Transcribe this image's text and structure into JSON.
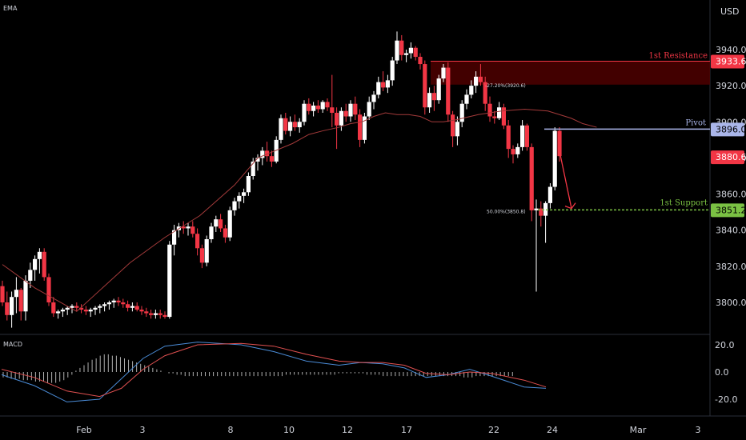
{
  "header": {
    "indicator": "EMA",
    "currency": "USD"
  },
  "macd_panel": {
    "label": "MACD",
    "ticks": [
      "20.0",
      "0.0",
      "-20.0"
    ]
  },
  "colors": {
    "up": "#ffffff",
    "down": "#f23645",
    "ema": "#a33a3a",
    "resistance": "#f23645",
    "pivot": "#aab6ea",
    "support": "#7ac143",
    "zone": "#4d0000",
    "macd": "#4a8bd6",
    "signal": "#e05050",
    "hist": "#b0b0b0"
  },
  "chart_data": [
    {
      "type": "candlestick",
      "title": "",
      "y_ticks": [
        3940.0,
        3920.0,
        3900.0,
        3880.0,
        3860.0,
        3840.0,
        3820.0,
        3800.0
      ],
      "y_tick_labels": [
        "3940.0",
        "3920.0",
        "3900.0",
        "3880.0",
        "3860.0",
        "3840.0",
        "3820.0",
        "3800.0"
      ],
      "x_tick_labels": [
        "Feb",
        "3",
        "8",
        "10",
        "12",
        "17",
        "22",
        "24",
        "Mar",
        "3"
      ],
      "ylim": [
        3785,
        3958
      ],
      "levels": [
        {
          "name": "1st Resistance",
          "value": 3933.6,
          "label": "3933.6"
        },
        {
          "name": "Pivot",
          "value": 3896.0,
          "label": "3896.0"
        },
        {
          "name": "1st Support",
          "value": 3851.2,
          "label": "3851.2"
        }
      ],
      "fib_labels": [
        {
          "text": "-27.20%(3920.6)",
          "value": 3920.6
        },
        {
          "text": "50.00%(3850.8)",
          "value": 3850.8
        }
      ],
      "resistance_zone": [
        3920.6,
        3933.6
      ],
      "current_price": {
        "value": 3880.6,
        "label": "3880.6"
      },
      "candles": [
        [
          3809,
          3812,
          3798,
          3800
        ],
        [
          3800,
          3806,
          3790,
          3793
        ],
        [
          3793,
          3806,
          3786,
          3803
        ],
        [
          3803,
          3814,
          3794,
          3807
        ],
        [
          3807,
          3808,
          3790,
          3795
        ],
        [
          3795,
          3815,
          3790,
          3812
        ],
        [
          3812,
          3822,
          3808,
          3818
        ],
        [
          3818,
          3826,
          3812,
          3824
        ],
        [
          3824,
          3830,
          3816,
          3828
        ],
        [
          3828,
          3830,
          3812,
          3814
        ],
        [
          3814,
          3816,
          3798,
          3800
        ],
        [
          3800,
          3803,
          3792,
          3794
        ],
        [
          3794,
          3796,
          3791,
          3795
        ],
        [
          3795,
          3797,
          3792,
          3796
        ],
        [
          3796,
          3798,
          3793,
          3797
        ],
        [
          3797,
          3799,
          3794,
          3798
        ],
        [
          3798,
          3800,
          3795,
          3797
        ],
        [
          3797,
          3799,
          3794,
          3796
        ],
        [
          3796,
          3798,
          3793,
          3795
        ],
        [
          3795,
          3797,
          3792,
          3796
        ],
        [
          3796,
          3798,
          3793,
          3797
        ],
        [
          3797,
          3799,
          3794,
          3798
        ],
        [
          3798,
          3800,
          3795,
          3799
        ],
        [
          3799,
          3801,
          3796,
          3800
        ],
        [
          3800,
          3802,
          3797,
          3801
        ],
        [
          3801,
          3803,
          3798,
          3800
        ],
        [
          3800,
          3802,
          3797,
          3799
        ],
        [
          3799,
          3801,
          3795,
          3797
        ],
        [
          3797,
          3800,
          3795,
          3798
        ],
        [
          3798,
          3800,
          3795,
          3796
        ],
        [
          3796,
          3798,
          3793,
          3795
        ],
        [
          3795,
          3797,
          3792,
          3794
        ],
        [
          3794,
          3796,
          3791,
          3793
        ],
        [
          3793,
          3796,
          3791,
          3794
        ],
        [
          3794,
          3796,
          3791,
          3793
        ],
        [
          3793,
          3795,
          3791,
          3792
        ],
        [
          3792,
          3834,
          3791,
          3832
        ],
        [
          3832,
          3843,
          3826,
          3840
        ],
        [
          3840,
          3844,
          3836,
          3842
        ],
        [
          3842,
          3845,
          3838,
          3841
        ],
        [
          3841,
          3844,
          3837,
          3842
        ],
        [
          3842,
          3845,
          3836,
          3838
        ],
        [
          3838,
          3841,
          3826,
          3830
        ],
        [
          3830,
          3832,
          3819,
          3822
        ],
        [
          3822,
          3837,
          3820,
          3835
        ],
        [
          3835,
          3844,
          3833,
          3842
        ],
        [
          3842,
          3848,
          3839,
          3846
        ],
        [
          3846,
          3849,
          3839,
          3841
        ],
        [
          3841,
          3843,
          3833,
          3836
        ],
        [
          3836,
          3853,
          3834,
          3851
        ],
        [
          3851,
          3858,
          3848,
          3856
        ],
        [
          3856,
          3861,
          3852,
          3859
        ],
        [
          3859,
          3863,
          3855,
          3861
        ],
        [
          3861,
          3872,
          3859,
          3870
        ],
        [
          3870,
          3880,
          3868,
          3878
        ],
        [
          3878,
          3882,
          3873,
          3880
        ],
        [
          3880,
          3886,
          3876,
          3884
        ],
        [
          3884,
          3889,
          3878,
          3881
        ],
        [
          3881,
          3884,
          3875,
          3878
        ],
        [
          3878,
          3892,
          3877,
          3890
        ],
        [
          3890,
          3904,
          3888,
          3902
        ],
        [
          3902,
          3905,
          3893,
          3895
        ],
        [
          3895,
          3903,
          3892,
          3900
        ],
        [
          3900,
          3904,
          3895,
          3897
        ],
        [
          3897,
          3902,
          3894,
          3900
        ],
        [
          3900,
          3912,
          3898,
          3910
        ],
        [
          3910,
          3913,
          3904,
          3906
        ],
        [
          3906,
          3911,
          3903,
          3909
        ],
        [
          3909,
          3912,
          3905,
          3907
        ],
        [
          3907,
          3912,
          3905,
          3911
        ],
        [
          3911,
          3913,
          3906,
          3908
        ],
        [
          3908,
          3926,
          3897,
          3905
        ],
        [
          3905,
          3908,
          3885,
          3898
        ],
        [
          3898,
          3908,
          3895,
          3906
        ],
        [
          3906,
          3910,
          3900,
          3903
        ],
        [
          3903,
          3912,
          3900,
          3910
        ],
        [
          3910,
          3914,
          3901,
          3904
        ],
        [
          3904,
          3907,
          3886,
          3890
        ],
        [
          3890,
          3905,
          3888,
          3903
        ],
        [
          3903,
          3914,
          3901,
          3911
        ],
        [
          3911,
          3917,
          3907,
          3915
        ],
        [
          3915,
          3925,
          3913,
          3922
        ],
        [
          3922,
          3928,
          3917,
          3919
        ],
        [
          3919,
          3926,
          3916,
          3923
        ],
        [
          3923,
          3936,
          3920,
          3934
        ],
        [
          3934,
          3950,
          3932,
          3945
        ],
        [
          3945,
          3948,
          3934,
          3937
        ],
        [
          3937,
          3940,
          3933,
          3938
        ],
        [
          3938,
          3944,
          3935,
          3941
        ],
        [
          3941,
          3942,
          3934,
          3936
        ],
        [
          3936,
          3938,
          3929,
          3932
        ],
        [
          3932,
          3934,
          3904,
          3908
        ],
        [
          3908,
          3919,
          3905,
          3916
        ],
        [
          3916,
          3920,
          3906,
          3912
        ],
        [
          3912,
          3926,
          3910,
          3924
        ],
        [
          3924,
          3932,
          3922,
          3930
        ],
        [
          3930,
          3933,
          3900,
          3904
        ],
        [
          3904,
          3906,
          3886,
          3892
        ],
        [
          3892,
          3903,
          3887,
          3900
        ],
        [
          3900,
          3912,
          3897,
          3910
        ],
        [
          3910,
          3918,
          3907,
          3915
        ],
        [
          3915,
          3923,
          3913,
          3920
        ],
        [
          3920,
          3928,
          3916,
          3925
        ],
        [
          3925,
          3932,
          3920,
          3922
        ],
        [
          3922,
          3925,
          3906,
          3910
        ],
        [
          3910,
          3914,
          3900,
          3903
        ],
        [
          3903,
          3906,
          3899,
          3902
        ],
        [
          3902,
          3911,
          3901,
          3908
        ],
        [
          3908,
          3910,
          3896,
          3898
        ],
        [
          3898,
          3901,
          3880,
          3885
        ],
        [
          3885,
          3887,
          3877,
          3882
        ],
        [
          3882,
          3888,
          3880,
          3886
        ],
        [
          3886,
          3901,
          3884,
          3898
        ],
        [
          3898,
          3899,
          3884,
          3886
        ],
        [
          3886,
          3888,
          3845,
          3851
        ],
        [
          3851,
          3857,
          3806,
          3852
        ],
        [
          3852,
          3856,
          3842,
          3848
        ],
        [
          3848,
          3856,
          3833,
          3855
        ],
        [
          3855,
          3866,
          3852,
          3864
        ],
        [
          3864,
          3897,
          3862,
          3895
        ],
        [
          3895,
          3897,
          3878,
          3881
        ]
      ],
      "ema": [
        [
          0,
          3821
        ],
        [
          14,
          3808
        ],
        [
          32,
          3795
        ],
        [
          55,
          3822
        ],
        [
          70,
          3836
        ],
        [
          85,
          3848
        ],
        [
          100,
          3865
        ],
        [
          110,
          3880
        ],
        [
          125,
          3888
        ],
        [
          132,
          3893
        ],
        [
          138,
          3895
        ],
        [
          145,
          3897
        ],
        [
          150,
          3899
        ],
        [
          155,
          3900
        ],
        [
          160,
          3903
        ],
        [
          165,
          3905
        ],
        [
          170,
          3904
        ],
        [
          175,
          3904
        ],
        [
          180,
          3903
        ],
        [
          185,
          3900
        ],
        [
          190,
          3900
        ],
        [
          195,
          3901
        ],
        [
          205,
          3904
        ],
        [
          215,
          3906
        ],
        [
          225,
          3907
        ],
        [
          235,
          3906
        ],
        [
          245,
          3902
        ],
        [
          250,
          3899
        ],
        [
          256,
          3897
        ]
      ],
      "arrow_from": [
        238,
        3888
      ],
      "arrow_to": [
        250,
        3852
      ]
    },
    {
      "type": "line",
      "title": "MACD",
      "ylim": [
        -28,
        28
      ],
      "y_ticks": [
        20.0,
        0.0,
        -20.0
      ],
      "series": [
        {
          "name": "",
          "points": [
            [
              0,
              -2
            ],
            [
              15,
              -10
            ],
            [
              30,
              -22
            ],
            [
              45,
              -20
            ],
            [
              55,
              -5
            ],
            [
              65,
              10
            ],
            [
              75,
              19
            ],
            [
              90,
              22
            ],
            [
              110,
              20
            ],
            [
              125,
              15
            ],
            [
              140,
              8
            ],
            [
              155,
              5
            ],
            [
              165,
              7
            ],
            [
              175,
              6
            ],
            [
              185,
              3
            ],
            [
              195,
              -4
            ],
            [
              205,
              -2
            ],
            [
              215,
              2
            ],
            [
              225,
              -3
            ],
            [
              240,
              -11
            ],
            [
              250,
              -12
            ]
          ]
        },
        {
          "name": "",
          "points": [
            [
              0,
              2
            ],
            [
              15,
              -4
            ],
            [
              30,
              -14
            ],
            [
              45,
              -18
            ],
            [
              55,
              -12
            ],
            [
              65,
              2
            ],
            [
              75,
              12
            ],
            [
              90,
              20
            ],
            [
              110,
              21
            ],
            [
              125,
              19
            ],
            [
              140,
              13
            ],
            [
              155,
              8
            ],
            [
              165,
              7
            ],
            [
              175,
              7
            ],
            [
              185,
              5
            ],
            [
              195,
              -1
            ],
            [
              205,
              -2
            ],
            [
              215,
              0
            ],
            [
              225,
              -1
            ],
            [
              240,
              -6
            ],
            [
              250,
              -11
            ]
          ]
        }
      ],
      "histogram": [
        -4,
        -4,
        -5,
        -5,
        -5,
        -6,
        -6,
        -6,
        -7,
        -7,
        -7,
        -8,
        -8,
        -8,
        -7,
        -6,
        -4,
        -2,
        1,
        3,
        5,
        7,
        9,
        10,
        12,
        13,
        13,
        12,
        12,
        11,
        10,
        9,
        8,
        7,
        6,
        5,
        4,
        3,
        2,
        1,
        0,
        -1,
        -1,
        -2,
        -2,
        -3,
        -3,
        -3,
        -3,
        -3,
        -3,
        -3,
        -3,
        -3,
        -3,
        -3,
        -3,
        -3,
        -3,
        -3,
        -3,
        -3,
        -3,
        -3,
        -3,
        -3,
        -3,
        -3,
        -3,
        -3,
        -2,
        -2,
        -2,
        -2,
        -2,
        -2,
        -2,
        -2,
        -2,
        -2,
        -2,
        -2,
        -2,
        -1,
        -1,
        -1,
        -1,
        -1,
        -1,
        -1,
        -2,
        -2,
        -2,
        -2,
        -3,
        -3,
        -3,
        -3,
        -3,
        -3,
        -3,
        -3,
        -3,
        -3,
        -3,
        -3,
        -3,
        -3,
        -3,
        -3,
        -3,
        -3,
        -3,
        -3,
        -4,
        -4,
        -4,
        -3,
        -3,
        -3,
        -3,
        -3,
        -3,
        -3,
        -3,
        -3,
        -3
      ]
    }
  ]
}
